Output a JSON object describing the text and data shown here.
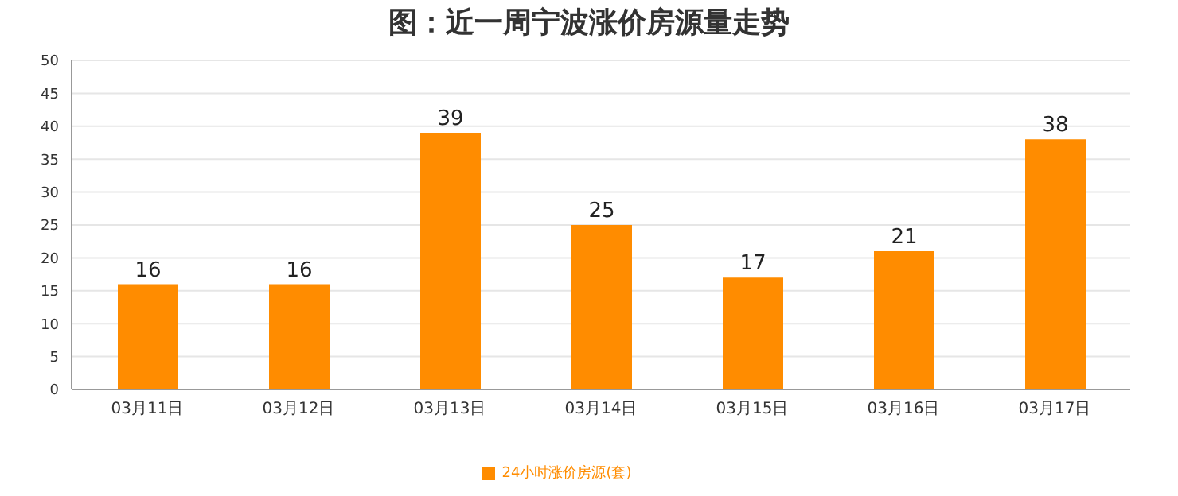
{
  "chart_data": {
    "type": "bar",
    "title": "图：近一周宁波涨价房源量走势",
    "categories": [
      "03月11日",
      "03月12日",
      "03月13日",
      "03月14日",
      "03月15日",
      "03月16日",
      "03月17日"
    ],
    "series": [
      {
        "name": "24小时涨价房源(套)",
        "color": "#ff8c00",
        "values": [
          16,
          16,
          39,
          25,
          17,
          21,
          38
        ]
      }
    ],
    "ylim": [
      0,
      50
    ],
    "yticks": [
      0,
      5,
      10,
      15,
      20,
      25,
      30,
      35,
      40,
      45,
      50
    ],
    "grid": "y",
    "legend": "bottom",
    "data_labels": true
  }
}
